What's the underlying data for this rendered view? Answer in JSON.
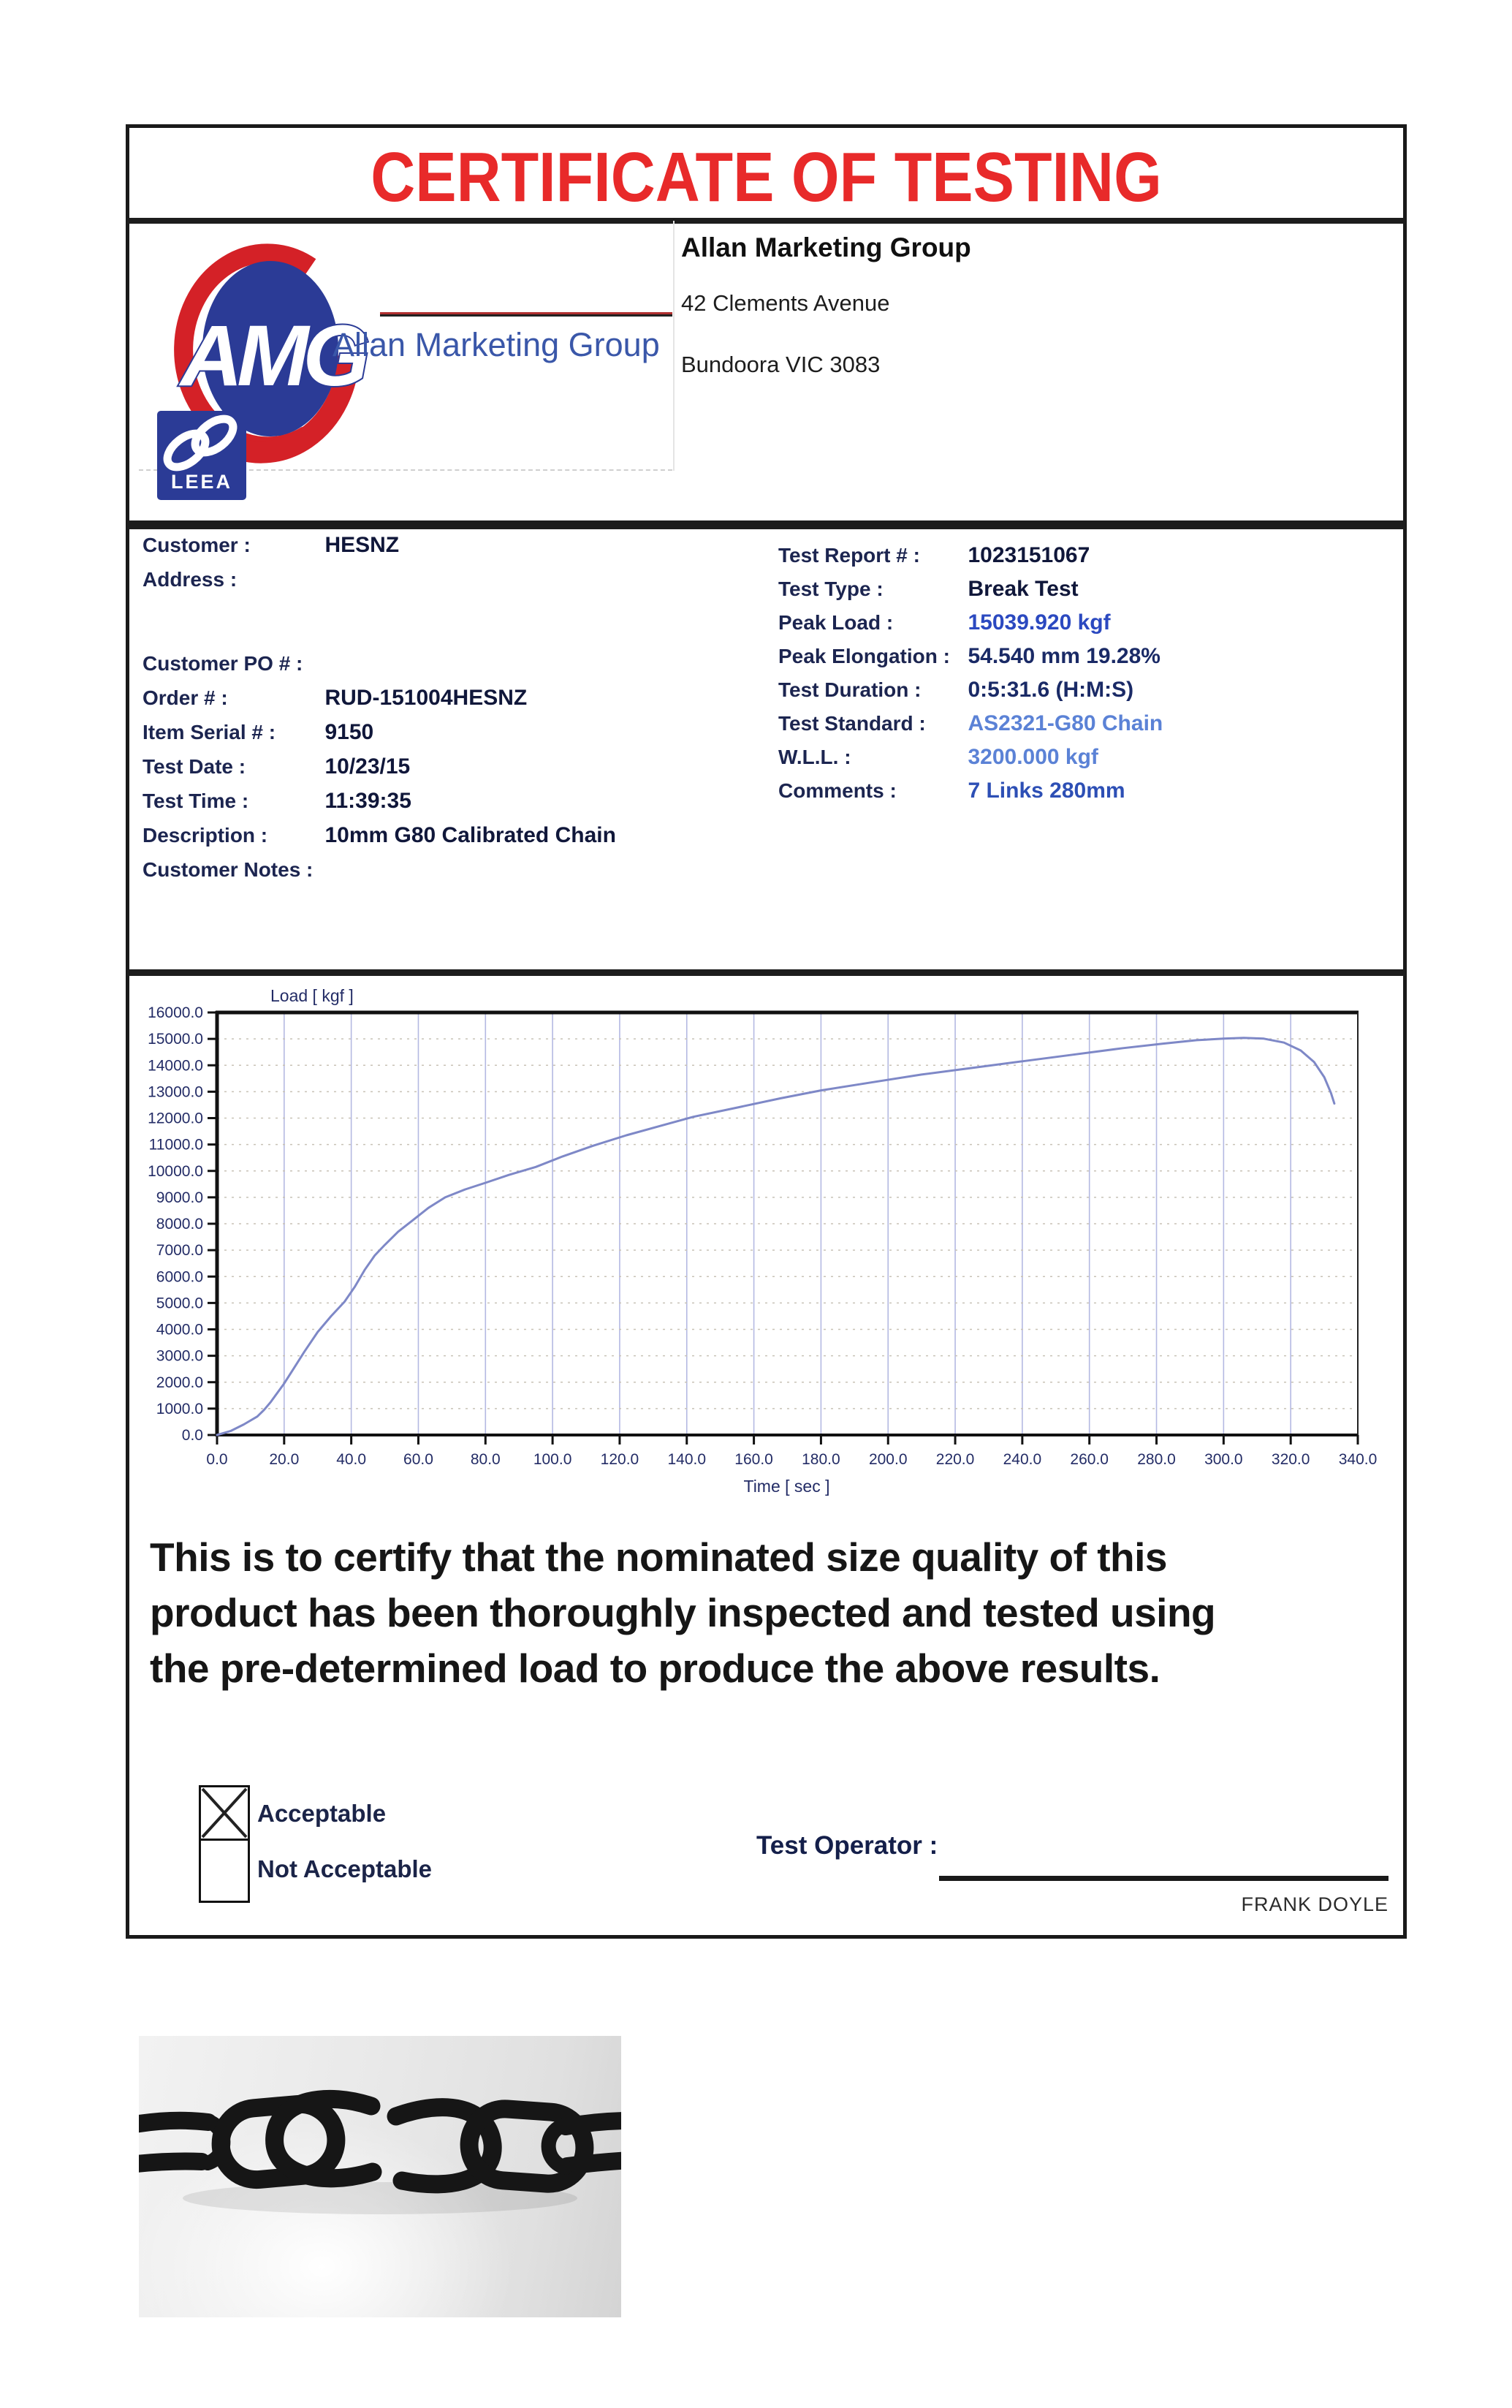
{
  "title": "CERTIFICATE OF TESTING",
  "header": {
    "logo": {
      "monogram": "AMG",
      "script_tagline": "Allan Marketing Group",
      "leea": "LEEA"
    },
    "company": {
      "name": "Allan Marketing Group",
      "address_line1": "42 Clements Avenue",
      "address_line2": "Bundoora VIC 3083"
    }
  },
  "info": {
    "left": [
      {
        "label": "Customer :",
        "value": "HESNZ",
        "color": "#10173a"
      },
      {
        "label": "Address :",
        "value": "",
        "color": "#10173a"
      },
      {
        "label": "Customer PO # :",
        "value": "",
        "color": "#10173a"
      },
      {
        "label": "Order # :",
        "value": "RUD-151004HESNZ",
        "color": "#10173a"
      },
      {
        "label": "Item Serial # :",
        "value": "9150",
        "color": "#10173a"
      },
      {
        "label": "Test Date :",
        "value": "10/23/15",
        "color": "#10173a"
      },
      {
        "label": "Test Time :",
        "value": "11:39:35",
        "color": "#10173a"
      },
      {
        "label": "Description :",
        "value": "10mm G80 Calibrated Chain",
        "color": "#10173a"
      },
      {
        "label": "Customer Notes :",
        "value": "",
        "color": "#10173a"
      }
    ],
    "right": [
      {
        "label": "Test Report # :",
        "value": "1023151067",
        "color": "#10173a"
      },
      {
        "label": "Test Type :",
        "value": "Break Test",
        "color": "#10173a"
      },
      {
        "label": "Peak Load :",
        "value": "15039.920 kgf",
        "color": "#2b49c0"
      },
      {
        "label": "Peak Elongation :",
        "value": "54.540 mm 19.28%",
        "color": "#1a2a66"
      },
      {
        "label": "Test Duration :",
        "value": "0:5:31.6 (H:M:S)",
        "color": "#1a2a66"
      },
      {
        "label": "Test Standard :",
        "value": "AS2321-G80 Chain",
        "color": "#5b82d6"
      },
      {
        "label": "W.L.L. :",
        "value": "3200.000 kgf",
        "color": "#5b82d6"
      },
      {
        "label": "Comments :",
        "value": "7 Links 280mm",
        "color": "#2d4fb5"
      }
    ]
  },
  "chart_data": {
    "type": "line",
    "title": "",
    "xlabel": "Time [ sec ]",
    "ylabel": "Load [ kgf ]",
    "xlim": [
      0,
      340
    ],
    "ylim": [
      0,
      16000
    ],
    "x_tick_step": 20,
    "y_tick_step": 1000,
    "grid": true,
    "legend": "none",
    "series": [
      {
        "name": "Load vs Time",
        "points": [
          [
            0,
            0
          ],
          [
            4,
            150
          ],
          [
            8,
            400
          ],
          [
            12,
            700
          ],
          [
            14,
            950
          ],
          [
            16,
            1250
          ],
          [
            18,
            1600
          ],
          [
            20,
            1950
          ],
          [
            23,
            2550
          ],
          [
            26,
            3150
          ],
          [
            30,
            3900
          ],
          [
            34,
            4500
          ],
          [
            38,
            5050
          ],
          [
            41,
            5600
          ],
          [
            44,
            6250
          ],
          [
            47,
            6800
          ],
          [
            50,
            7200
          ],
          [
            54,
            7700
          ],
          [
            58,
            8100
          ],
          [
            63,
            8600
          ],
          [
            68,
            9000
          ],
          [
            74,
            9300
          ],
          [
            80,
            9550
          ],
          [
            87,
            9850
          ],
          [
            95,
            10150
          ],
          [
            103,
            10550
          ],
          [
            112,
            10950
          ],
          [
            122,
            11350
          ],
          [
            132,
            11700
          ],
          [
            142,
            12050
          ],
          [
            155,
            12400
          ],
          [
            168,
            12750
          ],
          [
            180,
            13050
          ],
          [
            195,
            13350
          ],
          [
            210,
            13650
          ],
          [
            225,
            13900
          ],
          [
            240,
            14150
          ],
          [
            255,
            14400
          ],
          [
            270,
            14650
          ],
          [
            282,
            14820
          ],
          [
            292,
            14950
          ],
          [
            300,
            15010
          ],
          [
            306,
            15040
          ],
          [
            312,
            15010
          ],
          [
            318,
            14860
          ],
          [
            323,
            14560
          ],
          [
            327,
            14120
          ],
          [
            330,
            13550
          ],
          [
            332,
            12950
          ],
          [
            333,
            12550
          ]
        ]
      }
    ],
    "peak": {
      "time_sec": 306,
      "load_kgf": 15039.92
    }
  },
  "certification": {
    "lines": [
      "This is to certify that the nominated size quality of this",
      "product has been thoroughly inspected and tested using",
      "the pre-determined load to produce the above results."
    ]
  },
  "result": {
    "acceptable_label": "Acceptable",
    "not_acceptable_label": "Not Acceptable",
    "acceptable_checked": true,
    "not_acceptable_checked": false
  },
  "signature": {
    "label": "Test Operator :",
    "name": "FRANK DOYLE"
  },
  "colors": {
    "title_red": "#e82a2a",
    "label_navy": "#1c2550",
    "value_dark": "#10173a",
    "value_blue": "#2b49c0",
    "value_lightblue": "#5b82d6",
    "value_midblue": "#2d4fb5",
    "logo_blue": "#2b3b96",
    "logo_red": "#d42127",
    "script_blue": "#3a57a9",
    "chart_line": "#7e88c7",
    "grid_vertical": "#b4b9e2",
    "grid_horizontal": "#c8c2b6",
    "axis_text": "#232c66"
  }
}
